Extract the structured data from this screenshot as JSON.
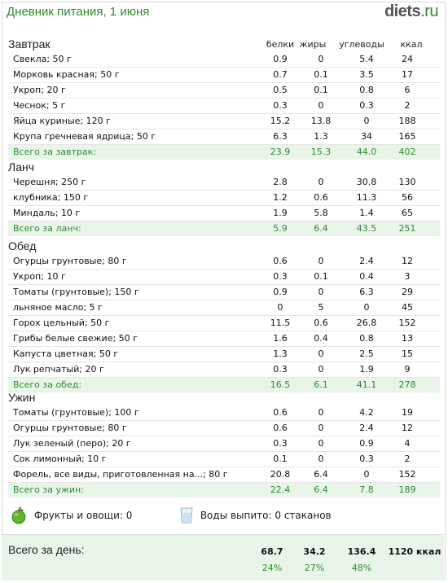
{
  "header": {
    "title": "Дневник питания, 1 июня",
    "logo_main": "diets",
    "logo_tld": ".ru"
  },
  "columns": [
    "белки",
    "жиры",
    "углеводы",
    "ккал"
  ],
  "meals": [
    {
      "title": "Завтрак",
      "items": [
        [
          "Свекла; 50 г",
          "0.9",
          "0",
          "5.4",
          "24"
        ],
        [
          "Морковь красная; 50 г",
          "0.7",
          "0.1",
          "3.5",
          "17"
        ],
        [
          "Укроп; 20 г",
          "0.5",
          "0.1",
          "0.8",
          "6"
        ],
        [
          "Чеснок; 5 г",
          "0.3",
          "0",
          "0.3",
          "2"
        ],
        [
          "Яйца куриные; 120 г",
          "15.2",
          "13.8",
          "0",
          "188"
        ],
        [
          "Крупа гречневая ядрица; 50 г",
          "6.3",
          "1.3",
          "34",
          "165"
        ]
      ],
      "total": [
        "Всего за завтрак:",
        "23.9",
        "15.3",
        "44.0",
        "402"
      ]
    },
    {
      "title": "Ланч",
      "items": [
        [
          "Черешня; 250 г",
          "2.8",
          "0",
          "30.8",
          "130"
        ],
        [
          "клубника; 150 г",
          "1.2",
          "0.6",
          "11.3",
          "56"
        ],
        [
          "Миндаль; 10 г",
          "1.9",
          "5.8",
          "1.4",
          "65"
        ]
      ],
      "total": [
        "Всего за ланч:",
        "5.9",
        "6.4",
        "43.5",
        "251"
      ]
    },
    {
      "title": "Обед",
      "items": [
        [
          "Огурцы грунтовые; 80 г",
          "0.6",
          "0",
          "2.4",
          "12"
        ],
        [
          "Укроп; 10 г",
          "0.3",
          "0.1",
          "0.4",
          "3"
        ],
        [
          "Томаты (грунтовые); 150 г",
          "0.9",
          "0",
          "6.3",
          "29"
        ],
        [
          "льняное масло; 5 г",
          "0",
          "5",
          "0",
          "45"
        ],
        [
          "Горох цельный; 50 г",
          "11.5",
          "0.6",
          "26.8",
          "152"
        ],
        [
          "Грибы белые свежие; 50 г",
          "1.6",
          "0.4",
          "0.8",
          "13"
        ],
        [
          "Капуста цветная; 50 г",
          "1.3",
          "0",
          "2.5",
          "15"
        ],
        [
          "Лук репчатый; 20 г",
          "0.3",
          "0",
          "1.9",
          "9"
        ]
      ],
      "total": [
        "Всего за обед:",
        "16.5",
        "6.1",
        "41.1",
        "278"
      ]
    },
    {
      "title": "Ужин",
      "items": [
        [
          "Томаты (грунтовые); 100 г",
          "0.6",
          "0",
          "4.2",
          "19"
        ],
        [
          "Огурцы грунтовые; 80 г",
          "0.6",
          "0",
          "2.4",
          "12"
        ],
        [
          "Лук зеленый (перо); 20 г",
          "0.3",
          "0",
          "0.9",
          "4"
        ],
        [
          "Сок лимонный; 10 г",
          "0.1",
          "0",
          "0.3",
          "2"
        ],
        [
          "Форель, все виды, приготовленная на...; 80 г",
          "20.8",
          "6.4",
          "0",
          "152"
        ]
      ],
      "total": [
        "Всего за ужин:",
        "22.4",
        "6.4",
        "7.8",
        "189"
      ]
    }
  ],
  "misc": {
    "fruits": "Фрукты и овощи: 0",
    "water": "Воды выпито: 0 стаканов"
  },
  "day": {
    "label": "Всего за день:",
    "values": [
      "68.7",
      "34.2",
      "136.4",
      "1120 ккал"
    ],
    "percents": [
      "24%",
      "27%",
      "48%"
    ]
  },
  "colors": {
    "accent": "#2e8b2e",
    "total_bg": "#eaf5ea"
  }
}
